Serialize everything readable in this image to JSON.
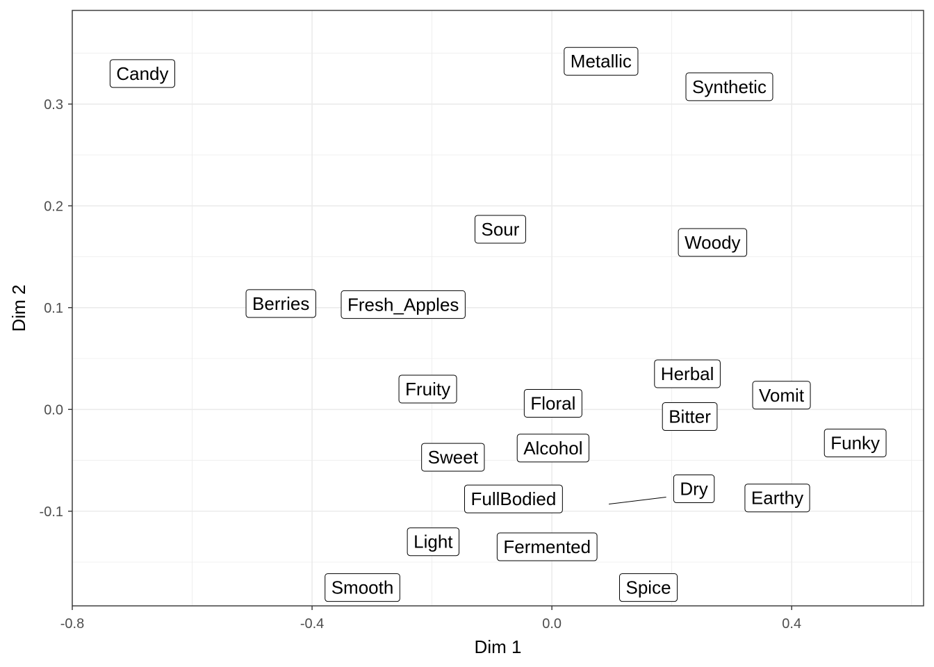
{
  "chart_data": {
    "type": "scatter",
    "title": "",
    "xlabel": "Dim 1",
    "ylabel": "Dim 2",
    "xlim": [
      -0.8,
      0.62
    ],
    "ylim": [
      -0.193,
      0.392
    ],
    "x_ticks": [
      -0.8,
      -0.4,
      0.0,
      0.4
    ],
    "x_tick_labels": [
      "-0.8",
      "-0.4",
      "0.0",
      "0.4"
    ],
    "y_ticks": [
      -0.1,
      0.0,
      0.1,
      0.2,
      0.3
    ],
    "y_tick_labels": [
      "-0.1",
      "0.0",
      "0.1",
      "0.2",
      "0.3"
    ],
    "grid": true,
    "legend": "none",
    "points": [
      {
        "label": "Candy",
        "x": -0.683,
        "y": 0.33
      },
      {
        "label": "Metallic",
        "x": 0.082,
        "y": 0.342
      },
      {
        "label": "Synthetic",
        "x": 0.296,
        "y": 0.317
      },
      {
        "label": "Sour",
        "x": -0.086,
        "y": 0.177
      },
      {
        "label": "Woody",
        "x": 0.268,
        "y": 0.164
      },
      {
        "label": "Berries",
        "x": -0.452,
        "y": 0.104
      },
      {
        "label": "Fresh_Apples",
        "x": -0.248,
        "y": 0.103
      },
      {
        "label": "Fruity",
        "x": -0.207,
        "y": 0.02
      },
      {
        "label": "Herbal",
        "x": 0.226,
        "y": 0.035
      },
      {
        "label": "Vomit",
        "x": 0.383,
        "y": 0.014
      },
      {
        "label": "Floral",
        "x": 0.002,
        "y": 0.006
      },
      {
        "label": "Bitter",
        "x": 0.23,
        "y": -0.007
      },
      {
        "label": "Funky",
        "x": 0.506,
        "y": -0.033
      },
      {
        "label": "Alcohol",
        "x": 0.002,
        "y": -0.038
      },
      {
        "label": "Sweet",
        "x": -0.165,
        "y": -0.047
      },
      {
        "label": "Dry",
        "x": 0.095,
        "y": -0.093
      },
      {
        "label": "FullBodied",
        "x": -0.064,
        "y": -0.088
      },
      {
        "label": "Earthy",
        "x": 0.376,
        "y": -0.087
      },
      {
        "label": "Light",
        "x": -0.198,
        "y": -0.13
      },
      {
        "label": "Fermented",
        "x": -0.008,
        "y": -0.135
      },
      {
        "label": "Smooth",
        "x": -0.316,
        "y": -0.175
      },
      {
        "label": "Spice",
        "x": 0.161,
        "y": -0.175
      }
    ],
    "label_offsets": {
      "Dry": [
        0.142,
        0.015
      ]
    },
    "colors": {
      "background": "#ffffff",
      "grid": "#ebebeb",
      "panel_border": "#333333",
      "label_box_border": "#000000",
      "text": "#000000",
      "tick_text": "#4d4d4d"
    }
  }
}
